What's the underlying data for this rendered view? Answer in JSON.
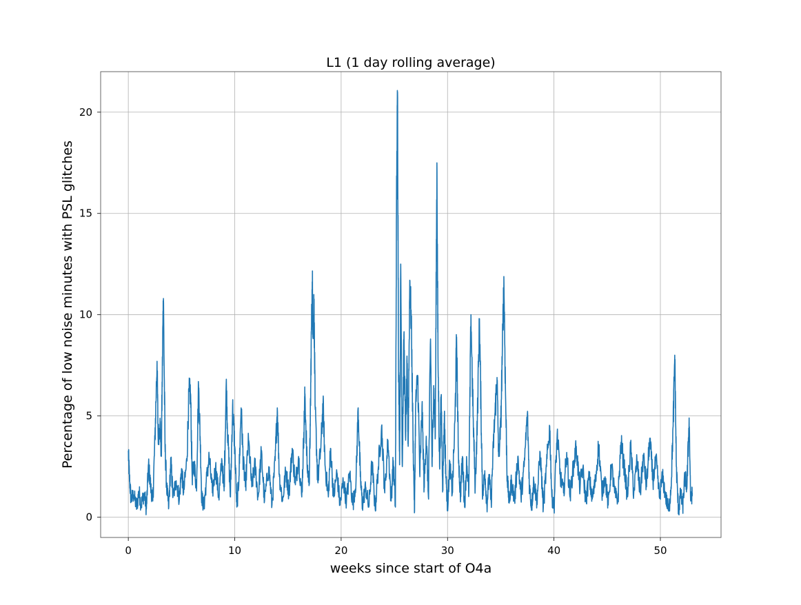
{
  "chart_data": {
    "type": "line",
    "title": "L1 (1 day rolling average)",
    "xlabel": "weeks since start of O4a",
    "ylabel": "Percentage of low noise minutes with PSL glitches",
    "xlim": [
      -2.6,
      55.7
    ],
    "ylim": [
      -1.0,
      22.0
    ],
    "xticks": [
      0,
      10,
      20,
      30,
      40,
      50
    ],
    "yticks": [
      0,
      5,
      10,
      15,
      20
    ],
    "grid": true,
    "series": [
      {
        "name": "",
        "color": "#1f77b4",
        "anchors": [
          [
            0.0,
            3.2
          ],
          [
            0.1,
            2.0
          ],
          [
            0.25,
            0.9
          ],
          [
            0.5,
            1.1
          ],
          [
            0.8,
            0.5
          ],
          [
            1.0,
            1.3
          ],
          [
            1.2,
            0.6
          ],
          [
            1.5,
            1.2
          ],
          [
            1.7,
            0.4
          ],
          [
            1.9,
            2.6
          ],
          [
            2.1,
            1.5
          ],
          [
            2.3,
            0.8
          ],
          [
            2.5,
            3.8
          ],
          [
            2.7,
            7.7
          ],
          [
            2.8,
            4.0
          ],
          [
            3.0,
            4.6
          ],
          [
            3.1,
            3.0
          ],
          [
            3.25,
            9.5
          ],
          [
            3.3,
            10.8
          ],
          [
            3.45,
            3.5
          ],
          [
            3.6,
            1.5
          ],
          [
            3.8,
            0.5
          ],
          [
            4.0,
            2.8
          ],
          [
            4.2,
            1.0
          ],
          [
            4.5,
            1.8
          ],
          [
            4.8,
            0.9
          ],
          [
            5.0,
            2.4
          ],
          [
            5.2,
            1.2
          ],
          [
            5.5,
            2.8
          ],
          [
            5.7,
            6.2
          ],
          [
            5.85,
            6.1
          ],
          [
            6.0,
            2.0
          ],
          [
            6.2,
            2.6
          ],
          [
            6.4,
            1.5
          ],
          [
            6.6,
            6.5
          ],
          [
            6.75,
            4.0
          ],
          [
            6.9,
            1.0
          ],
          [
            7.1,
            0.5
          ],
          [
            7.3,
            1.6
          ],
          [
            7.6,
            3.0
          ],
          [
            7.9,
            1.2
          ],
          [
            8.2,
            2.5
          ],
          [
            8.5,
            1.0
          ],
          [
            8.8,
            2.8
          ],
          [
            9.0,
            1.3
          ],
          [
            9.2,
            6.6
          ],
          [
            9.35,
            4.0
          ],
          [
            9.6,
            1.0
          ],
          [
            9.8,
            5.5
          ],
          [
            10.0,
            3.5
          ],
          [
            10.2,
            0.5
          ],
          [
            10.4,
            2.0
          ],
          [
            10.6,
            5.4
          ],
          [
            10.8,
            2.8
          ],
          [
            11.0,
            1.5
          ],
          [
            11.3,
            3.8
          ],
          [
            11.6,
            1.5
          ],
          [
            11.9,
            2.6
          ],
          [
            12.2,
            1.0
          ],
          [
            12.5,
            3.2
          ],
          [
            12.8,
            0.8
          ],
          [
            13.2,
            2.5
          ],
          [
            13.5,
            0.6
          ],
          [
            13.8,
            2.8
          ],
          [
            14.0,
            5.4
          ],
          [
            14.2,
            2.0
          ],
          [
            14.5,
            0.8
          ],
          [
            14.8,
            2.3
          ],
          [
            15.1,
            1.2
          ],
          [
            15.4,
            3.4
          ],
          [
            15.7,
            1.6
          ],
          [
            16.0,
            3.0
          ],
          [
            16.3,
            1.0
          ],
          [
            16.5,
            4.2
          ],
          [
            16.6,
            6.1
          ],
          [
            16.8,
            2.5
          ],
          [
            17.0,
            1.8
          ],
          [
            17.1,
            4.5
          ],
          [
            17.2,
            9.0
          ],
          [
            17.3,
            11.5
          ],
          [
            17.35,
            9.0
          ],
          [
            17.45,
            10.5
          ],
          [
            17.55,
            5.5
          ],
          [
            17.8,
            1.8
          ],
          [
            18.1,
            3.5
          ],
          [
            18.3,
            5.6
          ],
          [
            18.5,
            2.5
          ],
          [
            18.8,
            1.0
          ],
          [
            19.0,
            3.4
          ],
          [
            19.3,
            1.0
          ],
          [
            19.6,
            2.2
          ],
          [
            19.9,
            0.6
          ],
          [
            20.2,
            1.8
          ],
          [
            20.5,
            0.8
          ],
          [
            20.8,
            2.2
          ],
          [
            21.1,
            0.6
          ],
          [
            21.4,
            1.8
          ],
          [
            21.6,
            5.4
          ],
          [
            21.8,
            2.0
          ],
          [
            22.0,
            0.6
          ],
          [
            22.3,
            1.5
          ],
          [
            22.6,
            0.5
          ],
          [
            22.9,
            2.7
          ],
          [
            23.2,
            0.4
          ],
          [
            23.5,
            2.5
          ],
          [
            23.8,
            4.5
          ],
          [
            24.1,
            1.2
          ],
          [
            24.4,
            3.8
          ],
          [
            24.7,
            0.8
          ],
          [
            24.9,
            2.8
          ],
          [
            25.1,
            0.5
          ],
          [
            25.2,
            15.0
          ],
          [
            25.3,
            21.0
          ],
          [
            25.4,
            7.0
          ],
          [
            25.5,
            3.0
          ],
          [
            25.6,
            12.5
          ],
          [
            25.75,
            2.5
          ],
          [
            25.9,
            9.0
          ],
          [
            26.05,
            4.0
          ],
          [
            26.2,
            7.5
          ],
          [
            26.3,
            3.5
          ],
          [
            26.45,
            11.7
          ],
          [
            26.6,
            9.5
          ],
          [
            26.75,
            4.0
          ],
          [
            26.9,
            0.3
          ],
          [
            27.0,
            5.5
          ],
          [
            27.2,
            7.0
          ],
          [
            27.4,
            2.0
          ],
          [
            27.6,
            5.5
          ],
          [
            27.8,
            1.5
          ],
          [
            28.0,
            4.0
          ],
          [
            28.2,
            1.0
          ],
          [
            28.4,
            8.8
          ],
          [
            28.55,
            2.5
          ],
          [
            28.7,
            6.5
          ],
          [
            28.85,
            4.0
          ],
          [
            29.0,
            17.5
          ],
          [
            29.1,
            8.0
          ],
          [
            29.25,
            2.5
          ],
          [
            29.4,
            6.0
          ],
          [
            29.55,
            1.5
          ],
          [
            29.7,
            5.0
          ],
          [
            29.85,
            2.0
          ],
          [
            30.0,
            0.5
          ],
          [
            30.2,
            2.6
          ],
          [
            30.45,
            1.2
          ],
          [
            30.7,
            4.8
          ],
          [
            30.85,
            8.9
          ],
          [
            31.0,
            3.5
          ],
          [
            31.2,
            1.0
          ],
          [
            31.4,
            3.0
          ],
          [
            31.6,
            0.5
          ],
          [
            31.8,
            2.8
          ],
          [
            32.0,
            1.2
          ],
          [
            32.2,
            10.0
          ],
          [
            32.4,
            5.0
          ],
          [
            32.6,
            1.5
          ],
          [
            32.8,
            4.8
          ],
          [
            33.0,
            9.8
          ],
          [
            33.15,
            5.0
          ],
          [
            33.3,
            1.0
          ],
          [
            33.5,
            2.3
          ],
          [
            33.7,
            0.6
          ],
          [
            33.9,
            2.0
          ],
          [
            34.1,
            0.8
          ],
          [
            34.3,
            3.5
          ],
          [
            34.5,
            5.5
          ],
          [
            34.65,
            6.9
          ],
          [
            34.8,
            3.0
          ],
          [
            35.0,
            4.5
          ],
          [
            35.2,
            9.5
          ],
          [
            35.3,
            11.6
          ],
          [
            35.45,
            6.0
          ],
          [
            35.6,
            2.0
          ],
          [
            35.8,
            0.7
          ],
          [
            36.0,
            1.8
          ],
          [
            36.3,
            0.8
          ],
          [
            36.6,
            3.0
          ],
          [
            36.9,
            1.0
          ],
          [
            37.2,
            2.5
          ],
          [
            37.5,
            5.1
          ],
          [
            37.7,
            1.5
          ],
          [
            37.9,
            0.5
          ],
          [
            38.1,
            1.8
          ],
          [
            38.4,
            0.8
          ],
          [
            38.7,
            3.2
          ],
          [
            39.0,
            0.5
          ],
          [
            39.3,
            2.5
          ],
          [
            39.6,
            4.5
          ],
          [
            39.8,
            1.0
          ],
          [
            40.0,
            0.5
          ],
          [
            40.3,
            4.1
          ],
          [
            40.6,
            2.0
          ],
          [
            40.9,
            1.2
          ],
          [
            41.2,
            3.2
          ],
          [
            41.5,
            1.0
          ],
          [
            41.8,
            2.4
          ],
          [
            42.1,
            3.5
          ],
          [
            42.4,
            1.5
          ],
          [
            42.7,
            2.4
          ],
          [
            43.0,
            0.8
          ],
          [
            43.3,
            2.0
          ],
          [
            43.6,
            0.9
          ],
          [
            43.9,
            1.8
          ],
          [
            44.2,
            3.6
          ],
          [
            44.5,
            1.2
          ],
          [
            44.8,
            2.0
          ],
          [
            45.1,
            0.6
          ],
          [
            45.4,
            2.6
          ],
          [
            45.7,
            1.2
          ],
          [
            46.0,
            0.8
          ],
          [
            46.3,
            3.7
          ],
          [
            46.6,
            2.5
          ],
          [
            46.9,
            1.0
          ],
          [
            47.2,
            3.5
          ],
          [
            47.5,
            1.2
          ],
          [
            47.8,
            2.8
          ],
          [
            48.1,
            1.2
          ],
          [
            48.4,
            3.0
          ],
          [
            48.7,
            1.5
          ],
          [
            49.0,
            3.9
          ],
          [
            49.3,
            1.8
          ],
          [
            49.6,
            2.8
          ],
          [
            49.9,
            1.0
          ],
          [
            50.2,
            2.0
          ],
          [
            50.5,
            1.0
          ],
          [
            50.8,
            0.3
          ],
          [
            51.0,
            1.5
          ],
          [
            51.2,
            4.5
          ],
          [
            51.35,
            8.0
          ],
          [
            51.5,
            2.5
          ],
          [
            51.7,
            0.2
          ],
          [
            51.9,
            1.2
          ],
          [
            52.1,
            0.5
          ],
          [
            52.3,
            2.0
          ],
          [
            52.5,
            1.5
          ],
          [
            52.7,
            4.9
          ],
          [
            52.85,
            0.8
          ],
          [
            53.0,
            1.2
          ]
        ]
      }
    ]
  }
}
